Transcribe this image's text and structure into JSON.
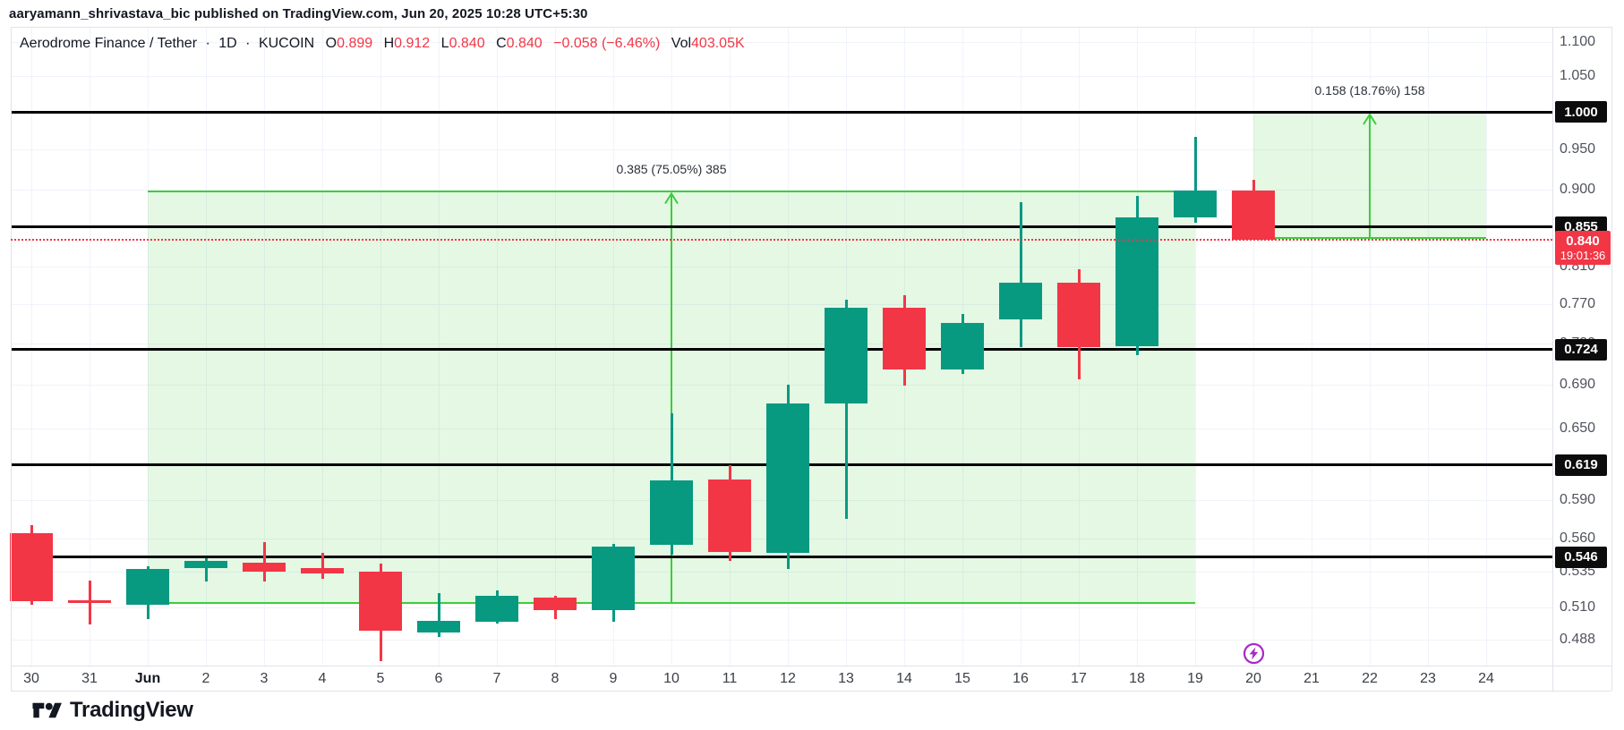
{
  "header": {
    "published_line": "aaryamann_shrivastava_bic published on TradingView.com, Jun 20, 2025 10:28 UTC+5:30"
  },
  "legend": {
    "symbol_title": "Aerodrome Finance / Tether",
    "separator": "·",
    "interval": "1D",
    "exchange": "KUCOIN",
    "open_label": "O",
    "open_value": "0.899",
    "high_label": "H",
    "high_value": "0.912",
    "low_label": "L",
    "low_value": "0.840",
    "close_label": "C",
    "close_value": "0.840",
    "change_value": "−0.058 (−6.46%)",
    "volume_label": "Vol",
    "volume_value": "403.05K"
  },
  "price_axis": {
    "current": {
      "label": "0.840",
      "countdown": "19:01:36"
    }
  },
  "footer": {
    "logo_text": "TradingView"
  },
  "colors": {
    "up": "#089981",
    "down": "#F23645",
    "measure_green": "#3ccd3c",
    "measure_fill": "rgba(62, 205, 62, 0.14)",
    "level_black": "#000000",
    "badge_bg": "#0c0c0c",
    "current_red": "#F23645",
    "grid": "#f0f3fa",
    "frame": "#e0e3eb",
    "idea_purple": "#a62bc4",
    "tick_text": "#50535e",
    "date_text": "#3a3e46"
  },
  "chart_data": {
    "type": "candlestick",
    "title": "Aerodrome Finance / Tether · 1D · KUCOIN",
    "scale": "log",
    "x_axis_labels": [
      "30",
      "31",
      "Jun",
      "2",
      "3",
      "4",
      "5",
      "6",
      "7",
      "8",
      "9",
      "10",
      "11",
      "12",
      "13",
      "14",
      "15",
      "16",
      "17",
      "18",
      "19",
      "20",
      "21",
      "22",
      "23",
      "24"
    ],
    "month_label_index": 2,
    "y_axis": {
      "ticks": [
        {
          "price": 1.1,
          "label": "1.100"
        },
        {
          "price": 1.05,
          "label": "1.050"
        },
        {
          "price": 0.95,
          "label": "0.950"
        },
        {
          "price": 0.9,
          "label": "0.900"
        },
        {
          "price": 0.81,
          "label": "0.810"
        },
        {
          "price": 0.77,
          "label": "0.770"
        },
        {
          "price": 0.73,
          "label": "0.730"
        },
        {
          "price": 0.69,
          "label": "0.690"
        },
        {
          "price": 0.65,
          "label": "0.650"
        },
        {
          "price": 0.59,
          "label": "0.590"
        },
        {
          "price": 0.56,
          "label": "0.560"
        },
        {
          "price": 0.535,
          "label": "0.535"
        },
        {
          "price": 0.51,
          "label": "0.510"
        },
        {
          "price": 0.488,
          "label": "0.488"
        }
      ]
    },
    "candles": [
      {
        "date": "May 30",
        "index": 0,
        "o": 0.564,
        "h": 0.57,
        "l": 0.512,
        "c": 0.514
      },
      {
        "date": "May 31",
        "index": 1,
        "o": 0.515,
        "h": 0.529,
        "l": 0.498,
        "c": 0.513
      },
      {
        "date": "Jun 1",
        "index": 2,
        "o": 0.512,
        "h": 0.539,
        "l": 0.502,
        "c": 0.537
      },
      {
        "date": "Jun 2",
        "index": 3,
        "o": 0.538,
        "h": 0.545,
        "l": 0.528,
        "c": 0.543
      },
      {
        "date": "Jun 3",
        "index": 4,
        "o": 0.542,
        "h": 0.557,
        "l": 0.528,
        "c": 0.535
      },
      {
        "date": "Jun 4",
        "index": 5,
        "o": 0.538,
        "h": 0.549,
        "l": 0.53,
        "c": 0.534
      },
      {
        "date": "Jun 5",
        "index": 6,
        "o": 0.535,
        "h": 0.541,
        "l": 0.474,
        "c": 0.494
      },
      {
        "date": "Jun 6",
        "index": 7,
        "o": 0.493,
        "h": 0.52,
        "l": 0.49,
        "c": 0.501
      },
      {
        "date": "Jun 7",
        "index": 8,
        "o": 0.5,
        "h": 0.522,
        "l": 0.499,
        "c": 0.518
      },
      {
        "date": "Jun 8",
        "index": 9,
        "o": 0.517,
        "h": 0.518,
        "l": 0.502,
        "c": 0.508
      },
      {
        "date": "Jun 9",
        "index": 10,
        "o": 0.508,
        "h": 0.556,
        "l": 0.5,
        "c": 0.554
      },
      {
        "date": "Jun 10",
        "index": 11,
        "o": 0.555,
        "h": 0.664,
        "l": 0.548,
        "c": 0.606
      },
      {
        "date": "Jun 11",
        "index": 12,
        "o": 0.607,
        "h": 0.619,
        "l": 0.543,
        "c": 0.55
      },
      {
        "date": "Jun 12",
        "index": 13,
        "o": 0.549,
        "h": 0.69,
        "l": 0.537,
        "c": 0.673
      },
      {
        "date": "Jun 13",
        "index": 14,
        "o": 0.673,
        "h": 0.775,
        "l": 0.575,
        "c": 0.766
      },
      {
        "date": "Jun 14",
        "index": 15,
        "o": 0.766,
        "h": 0.779,
        "l": 0.689,
        "c": 0.705
      },
      {
        "date": "Jun 15",
        "index": 16,
        "o": 0.705,
        "h": 0.76,
        "l": 0.7,
        "c": 0.751
      },
      {
        "date": "Jun 16",
        "index": 17,
        "o": 0.754,
        "h": 0.884,
        "l": 0.726,
        "c": 0.793
      },
      {
        "date": "Jun 17",
        "index": 18,
        "o": 0.793,
        "h": 0.807,
        "l": 0.695,
        "c": 0.726
      },
      {
        "date": "Jun 18",
        "index": 19,
        "o": 0.727,
        "h": 0.892,
        "l": 0.718,
        "c": 0.866
      },
      {
        "date": "Jun 19",
        "index": 20,
        "o": 0.866,
        "h": 0.967,
        "l": 0.86,
        "c": 0.899
      },
      {
        "date": "Jun 20",
        "index": 21,
        "o": 0.899,
        "h": 0.912,
        "l": 0.84,
        "c": 0.84
      }
    ],
    "horizontal_levels": [
      {
        "price": 1.0,
        "label": "1.000"
      },
      {
        "price": 0.855,
        "label": "0.855"
      },
      {
        "price": 0.724,
        "label": "0.724"
      },
      {
        "price": 0.619,
        "label": "0.619"
      },
      {
        "price": 0.546,
        "label": "0.546"
      }
    ],
    "current_price": {
      "price": 0.84,
      "label": "0.840",
      "countdown": "19:01:36"
    },
    "price_range_measurements": [
      {
        "label": "0.385 (75.05%) 385",
        "from_price": 0.513,
        "to_price": 0.898,
        "start_date": "Jun 1",
        "end_date": "Jun 19",
        "start_index": 2,
        "end_index": 20,
        "arrow_index": 11
      },
      {
        "label": "0.158 (18.76%) 158",
        "from_price": 0.842,
        "to_price": 1.0,
        "start_date": "Jun 20",
        "end_date": "Jun 24",
        "start_index": 21,
        "end_index": 25,
        "arrow_index": 23
      }
    ],
    "markers": {
      "idea_flash_date_index": 21
    }
  }
}
